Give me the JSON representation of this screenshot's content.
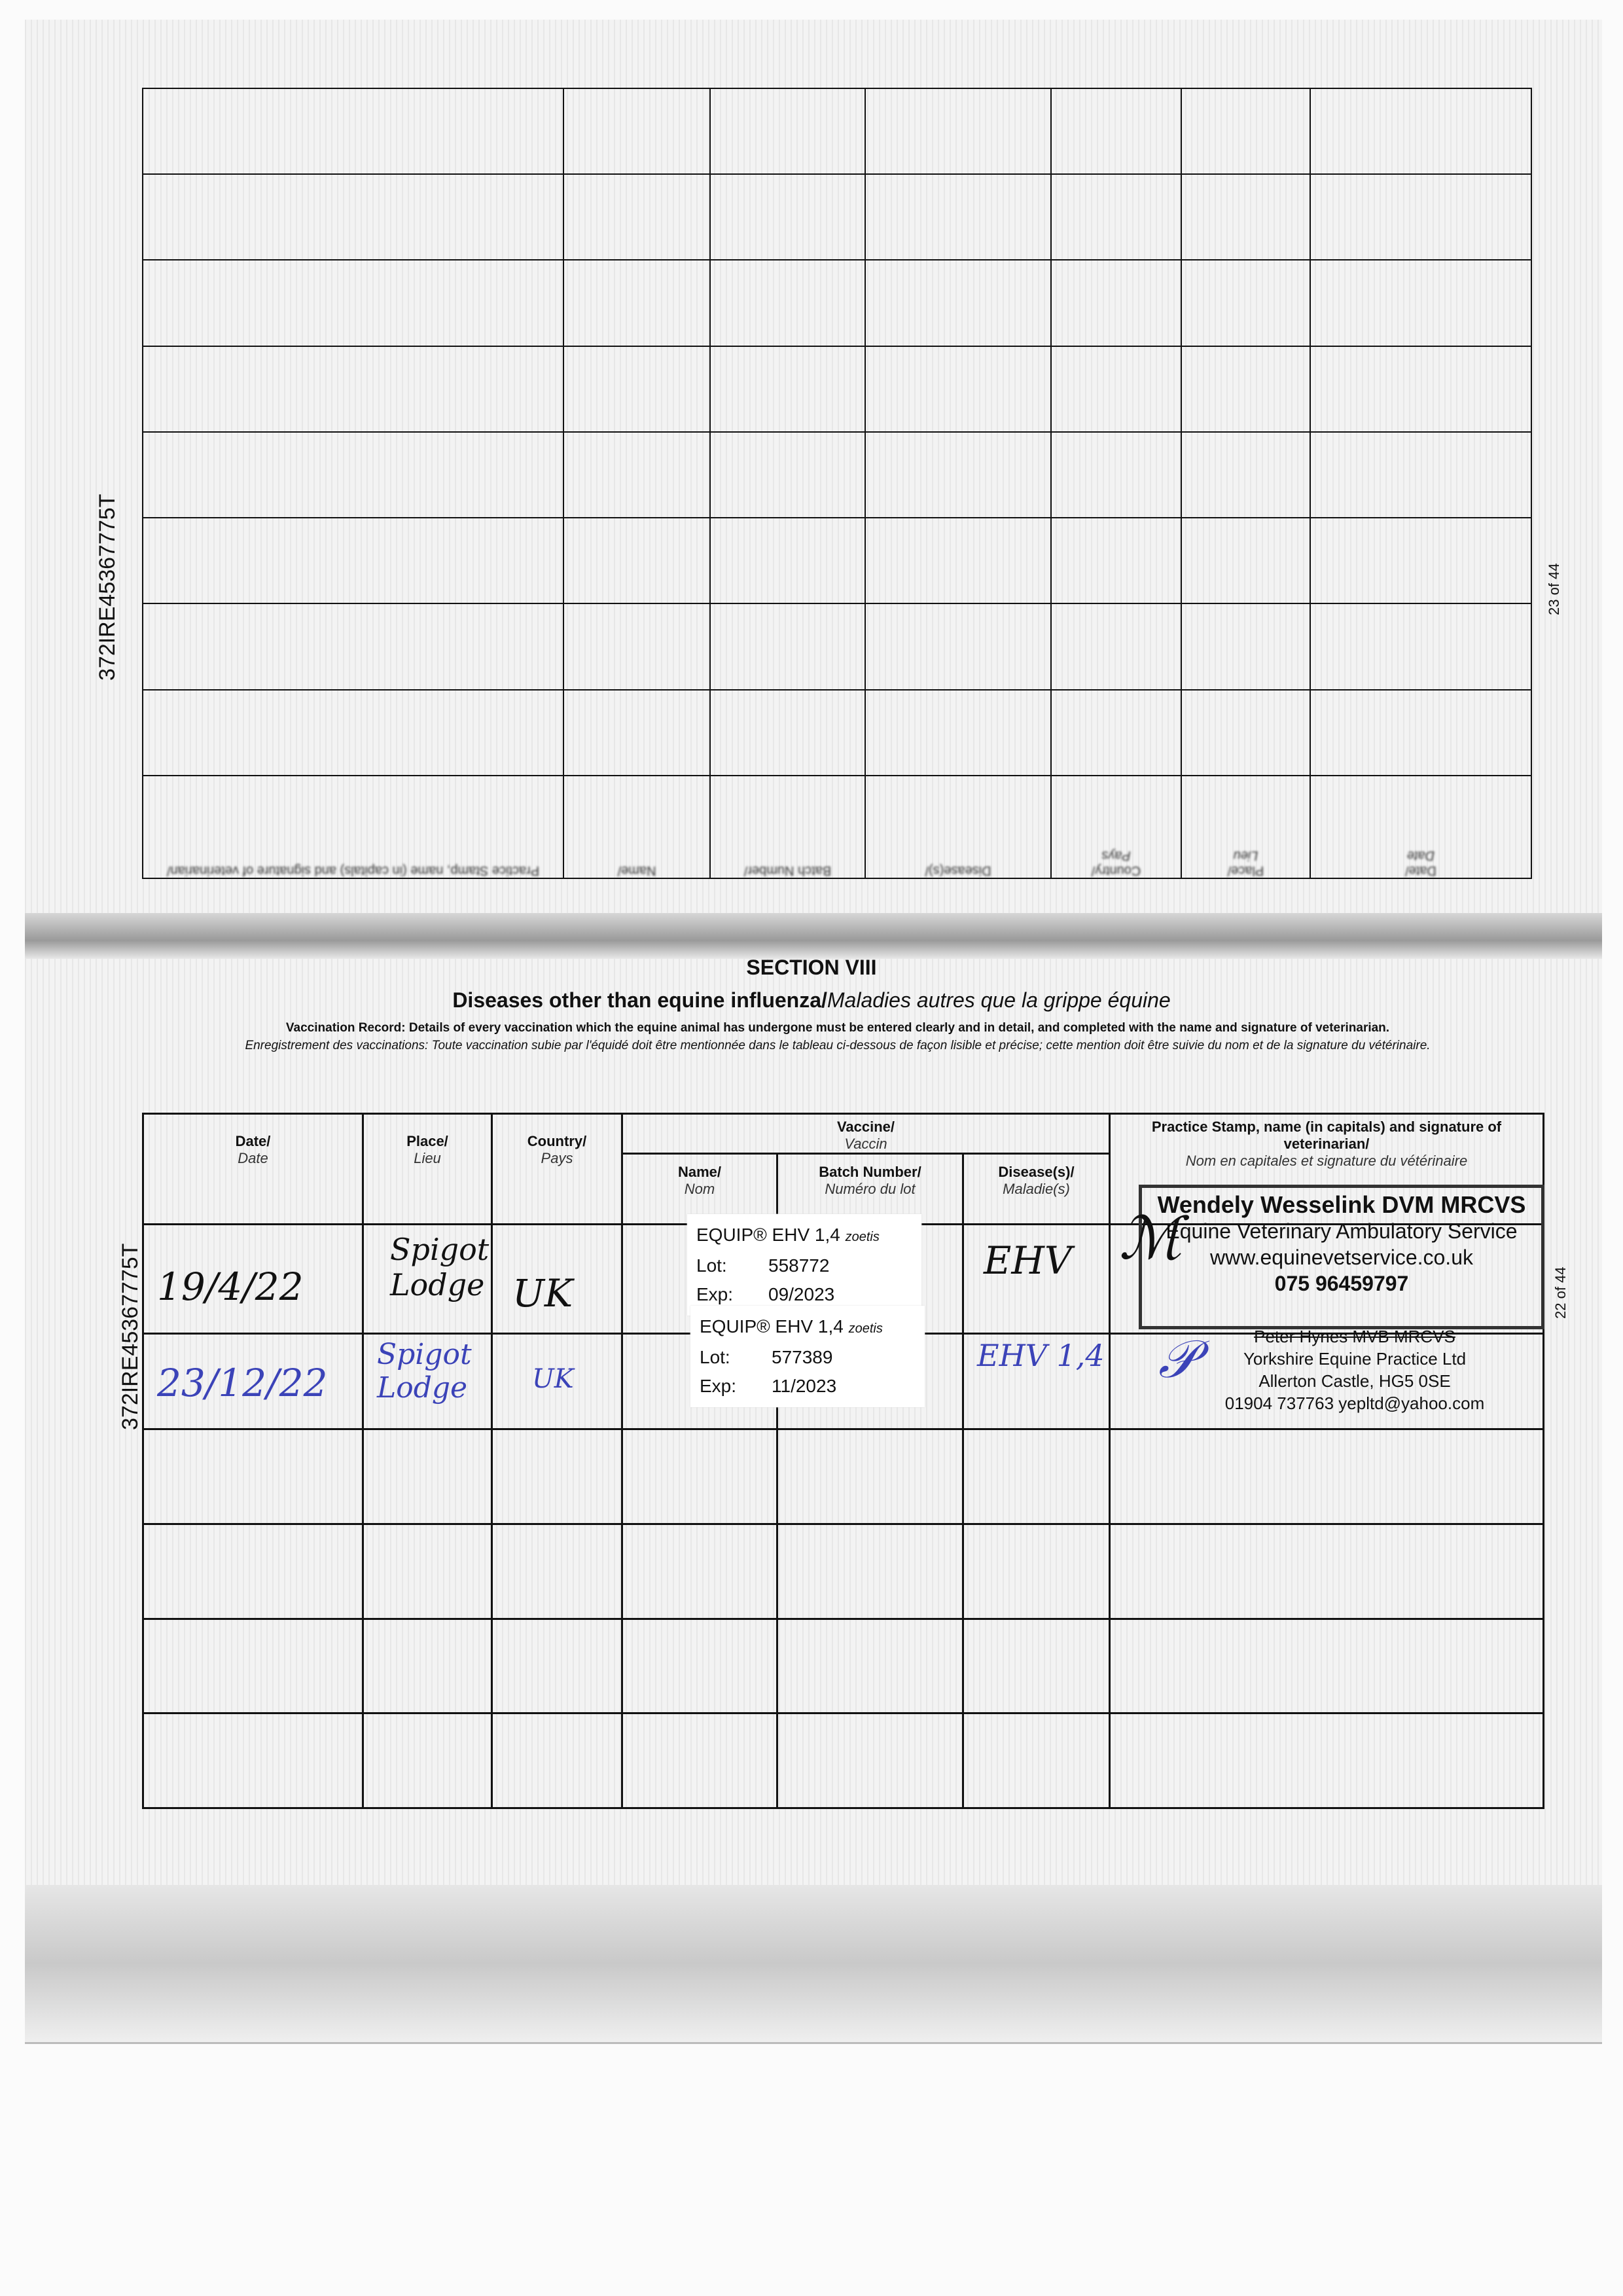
{
  "document_id": "372IRE45367775T",
  "pages": {
    "upper": "23 of 44",
    "lower": "22 of 44"
  },
  "section": {
    "number": "SECTION VIII",
    "title_en": "Diseases other than equine influenza/",
    "title_fr": "Maladies autres que la grippe équine",
    "desc_en": "Vaccination Record: Details of every vaccination which the equine animal has undergone must be entered clearly and in detail, and completed with the name and signature of veterinarian.",
    "desc_fr": "Enregistrement des vaccinations: Toute vaccination subie par l'équidé doit être mentionnée dans le tableau ci-dessous de façon lisible et précise; cette mention doit être suivie du nom et de la signature du vétérinaire."
  },
  "headers": {
    "date": {
      "en": "Date/",
      "fr": "Date"
    },
    "place": {
      "en": "Place/",
      "fr": "Lieu"
    },
    "country": {
      "en": "Country/",
      "fr": "Pays"
    },
    "vaccine": {
      "en": "Vaccine/",
      "fr": "Vaccin"
    },
    "name": {
      "en": "Name/",
      "fr": "Nom"
    },
    "batch": {
      "en": "Batch Number/",
      "fr": "Numéro du lot"
    },
    "disease": {
      "en": "Disease(s)/",
      "fr": "Maladie(s)"
    },
    "stamp": {
      "en": "Practice Stamp, name (in capitals) and signature of veterinarian/",
      "fr": "Nom en capitales et signature du vétérinaire"
    }
  },
  "records": [
    {
      "date": "19/4/22",
      "place": "Spigot Lodge",
      "country": "UK",
      "vaccine_label": {
        "name": "EQUIP® EHV 1,4",
        "maker": "zoetis",
        "lot_label": "Lot:",
        "lot": "558772",
        "exp_label": "Exp:",
        "exp": "09/2023"
      },
      "disease": "EHV",
      "stamp": {
        "vet": "Wendely Wesselink DVM MRCVS",
        "practice": "Equine Veterinary Ambulatory Service",
        "web": "www.equinevetservice.co.uk",
        "phone": "075 96459797"
      }
    },
    {
      "date": "23/12/22",
      "place": "Spigot Lodge",
      "country": "UK",
      "vaccine_label": {
        "name": "EQUIP® EHV 1,4",
        "maker": "zoetis",
        "lot_label": "Lot:",
        "lot": "577389",
        "exp_label": "Exp:",
        "exp": "11/2023"
      },
      "disease": "EHV 1,4",
      "stamp": {
        "vet": "Peter Hynes MVB MRCVS",
        "practice": "Yorkshire Equine Practice Ltd",
        "address": "Allerton Castle, HG5 0SE",
        "contact": "01904 737763 yepltd@yahoo.com"
      }
    }
  ],
  "colors": {
    "ink_blue": "#3b43b8",
    "ink_black": "#111111"
  }
}
